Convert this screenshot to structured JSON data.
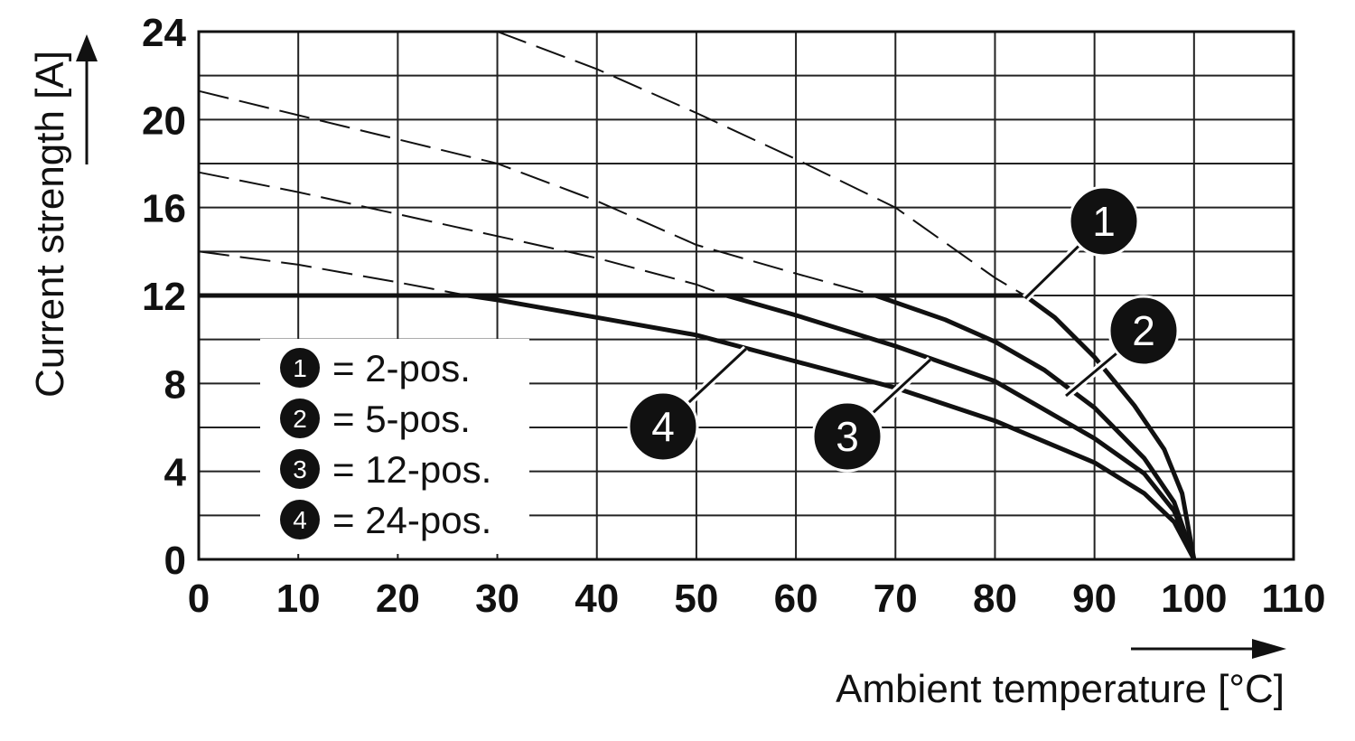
{
  "chart_data": {
    "type": "line",
    "xlabel": "Ambient temperature [°C]",
    "ylabel": "Current strength [A]",
    "xlim": [
      0,
      110
    ],
    "ylim": [
      0,
      24
    ],
    "x_ticks": [
      0,
      10,
      20,
      30,
      40,
      50,
      60,
      70,
      80,
      90,
      100,
      110
    ],
    "y_ticks": [
      0,
      4,
      8,
      12,
      16,
      20,
      24
    ],
    "x_tick_labels": [
      "0",
      "10",
      "20",
      "30",
      "40",
      "50",
      "60",
      "70",
      "80",
      "90",
      "100",
      "110"
    ],
    "y_tick_labels": [
      "0",
      "4",
      "8",
      "12",
      "16",
      "20",
      "24"
    ],
    "grid": true,
    "legend_position": "lower-left",
    "series": [
      {
        "id": "1",
        "marker": "1",
        "label": "= 2-pos.",
        "solid": [
          [
            0,
            12
          ],
          [
            83,
            12
          ],
          [
            86,
            11
          ],
          [
            90,
            9.2
          ],
          [
            94,
            7
          ],
          [
            97,
            5
          ],
          [
            98.8,
            3
          ],
          [
            100,
            0
          ]
        ],
        "dashed": [
          [
            30,
            24
          ],
          [
            40,
            22.3
          ],
          [
            50,
            20.3
          ],
          [
            60,
            18.2
          ],
          [
            70,
            16
          ],
          [
            80,
            12.8
          ],
          [
            83,
            12
          ]
        ]
      },
      {
        "id": "2",
        "marker": "2",
        "label": "= 5-pos.",
        "solid": [
          [
            0,
            12
          ],
          [
            68,
            12
          ],
          [
            75,
            10.9
          ],
          [
            80,
            9.9
          ],
          [
            85,
            8.6
          ],
          [
            90,
            6.9
          ],
          [
            95,
            4.6
          ],
          [
            98,
            2.6
          ],
          [
            100,
            0
          ]
        ],
        "dashed": [
          [
            0,
            21.3
          ],
          [
            10,
            20.2
          ],
          [
            20,
            19.1
          ],
          [
            30,
            18
          ],
          [
            40,
            16.3
          ],
          [
            50,
            14.3
          ],
          [
            60,
            13
          ],
          [
            68,
            12
          ]
        ]
      },
      {
        "id": "3",
        "marker": "3",
        "label": "= 12-pos.",
        "solid": [
          [
            0,
            12
          ],
          [
            53,
            12
          ],
          [
            60,
            11.1
          ],
          [
            70,
            9.7
          ],
          [
            80,
            8.1
          ],
          [
            90,
            5.5
          ],
          [
            95,
            3.9
          ],
          [
            98,
            2.2
          ],
          [
            100,
            0
          ]
        ],
        "dashed": [
          [
            0,
            17.6
          ],
          [
            10,
            16.7
          ],
          [
            20,
            15.7
          ],
          [
            30,
            14.7
          ],
          [
            40,
            13.7
          ],
          [
            50,
            12.5
          ],
          [
            53,
            12
          ]
        ]
      },
      {
        "id": "4",
        "marker": "4",
        "label": "= 24-pos.",
        "solid": [
          [
            0,
            12
          ],
          [
            27,
            12
          ],
          [
            30,
            11.8
          ],
          [
            40,
            11
          ],
          [
            50,
            10.2
          ],
          [
            60,
            9
          ],
          [
            70,
            7.8
          ],
          [
            80,
            6.3
          ],
          [
            90,
            4.4
          ],
          [
            95,
            3
          ],
          [
            98,
            1.7
          ],
          [
            100,
            0
          ]
        ],
        "dashed": [
          [
            0,
            14
          ],
          [
            10,
            13.4
          ],
          [
            20,
            12.6
          ],
          [
            27,
            12
          ]
        ]
      }
    ]
  }
}
